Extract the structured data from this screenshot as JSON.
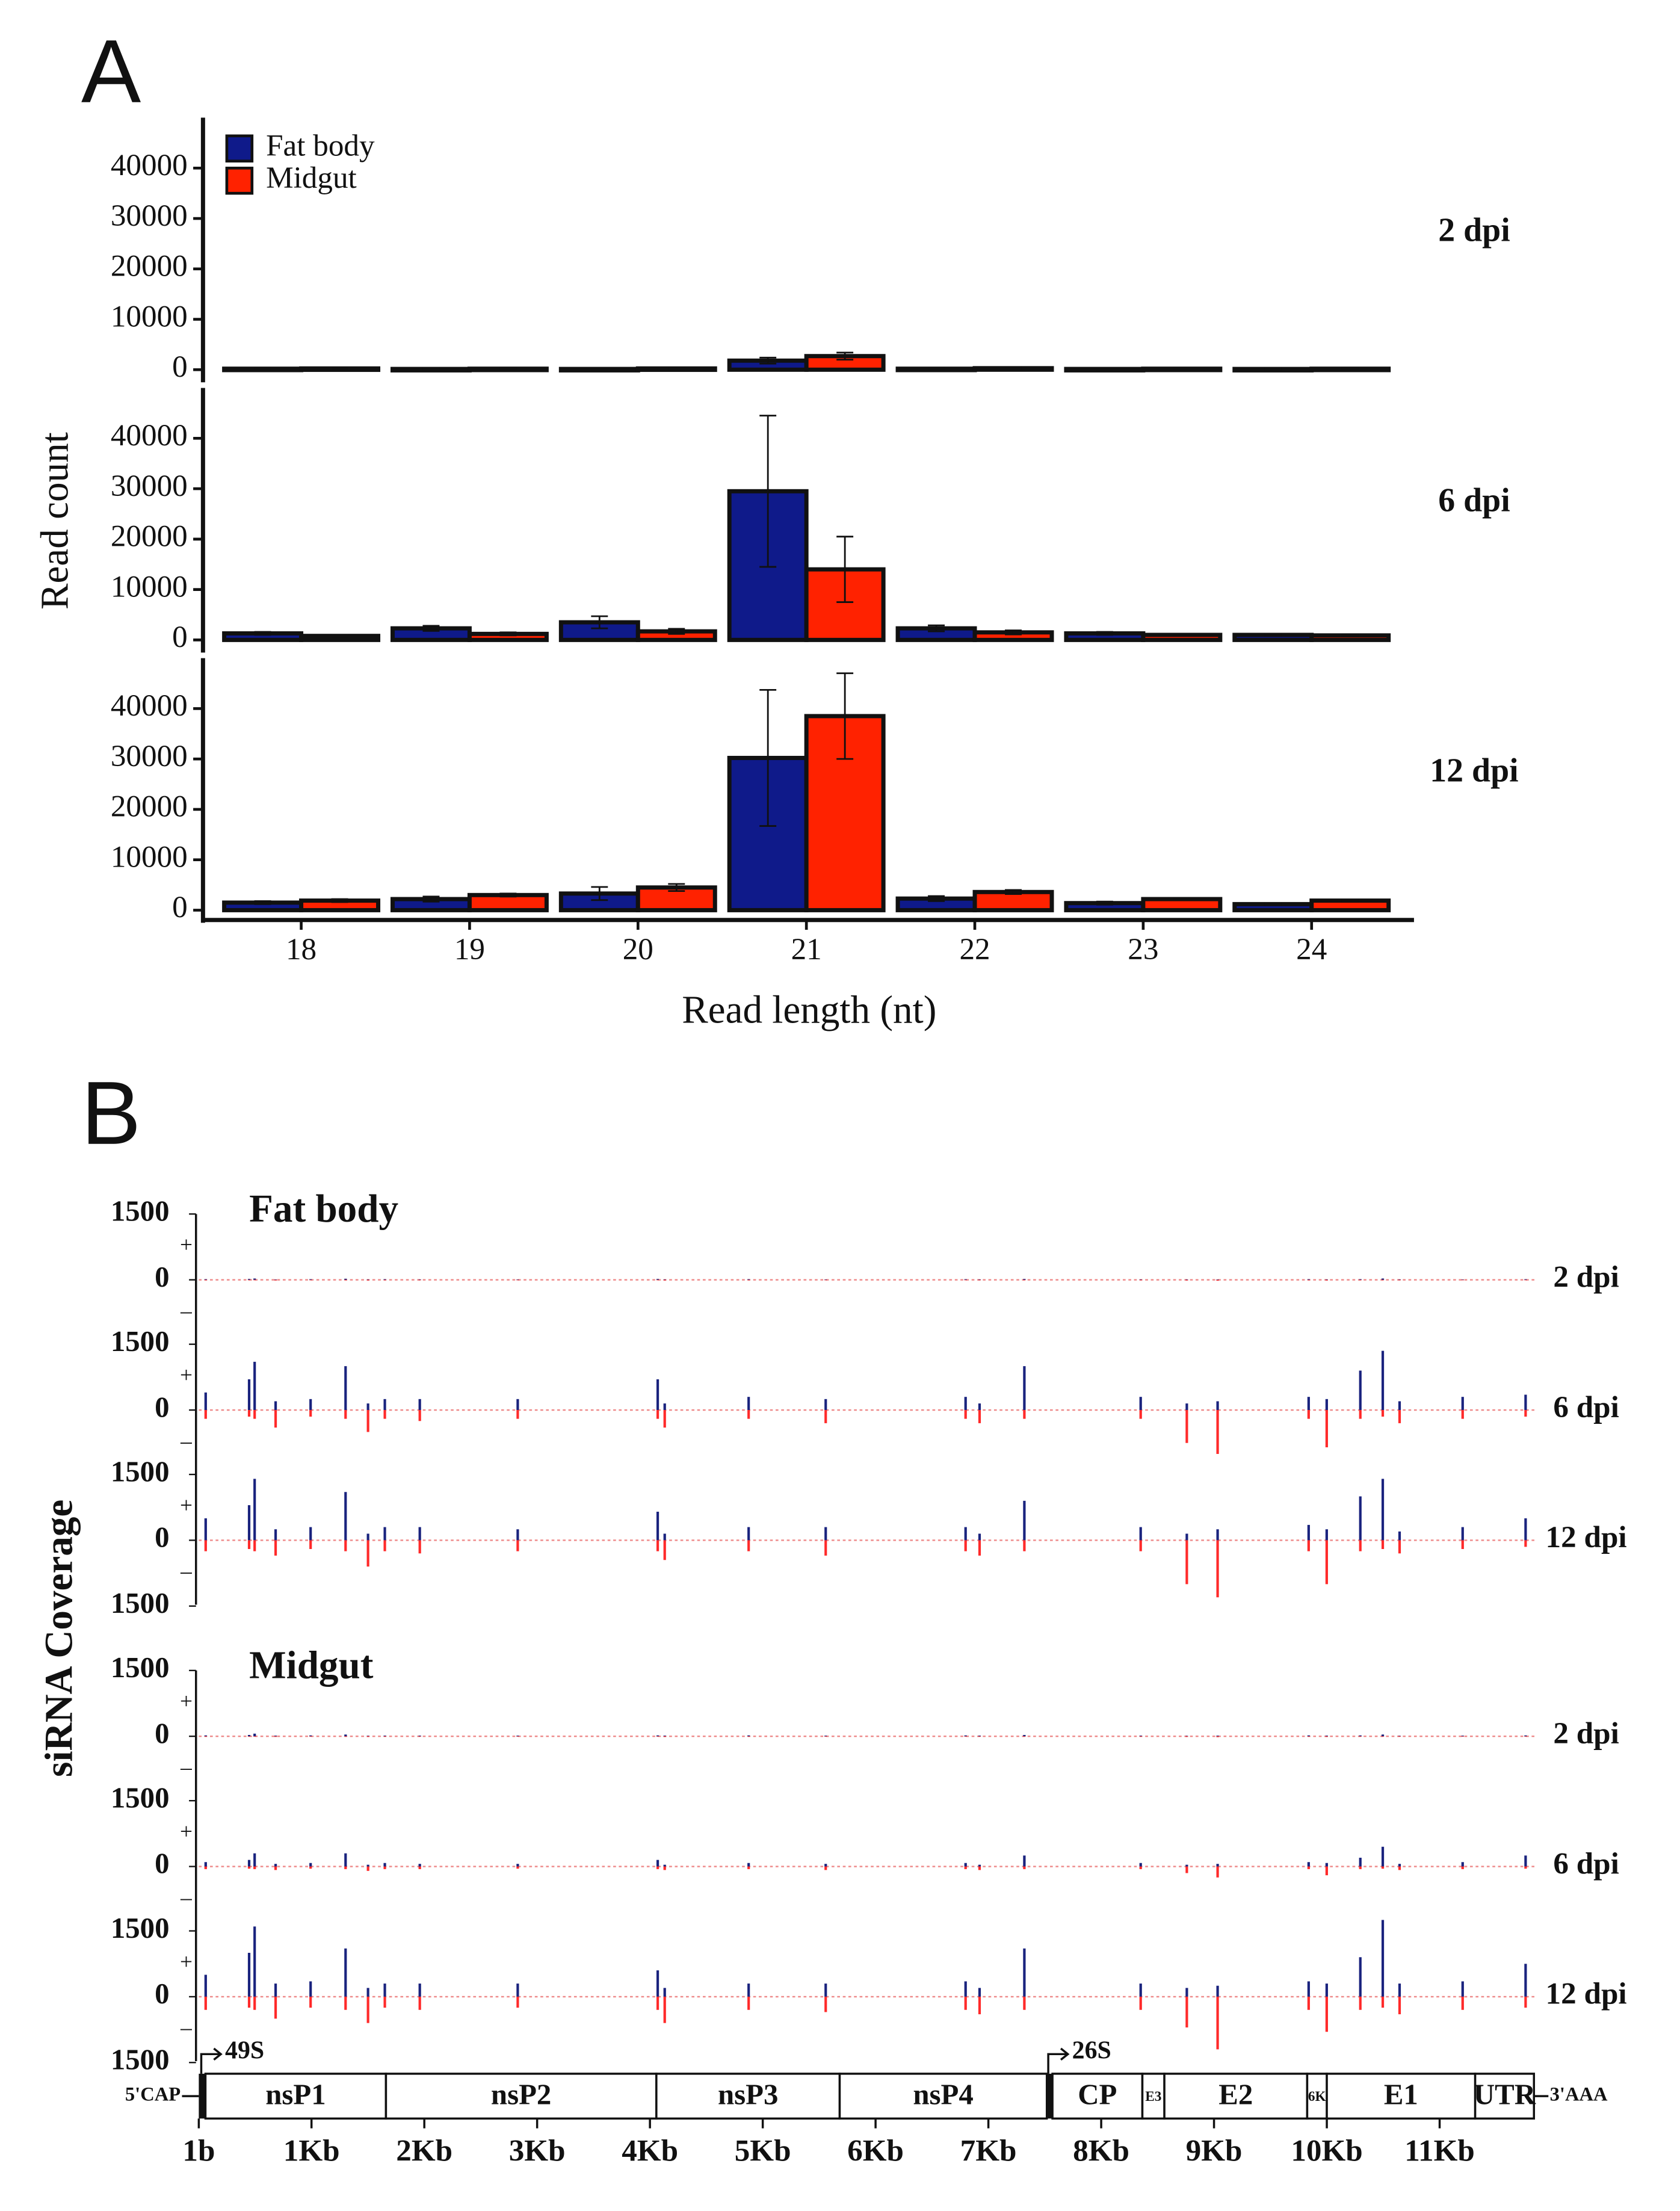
{
  "chart_data": [
    {
      "type": "bar",
      "panel_label": "A",
      "x_label": "Read length (nt)",
      "y_label": "Read count",
      "categories": [
        "18",
        "19",
        "20",
        "21",
        "22",
        "23",
        "24"
      ],
      "series": [
        {
          "name": "Fat body",
          "color": "#0f1a8a"
        },
        {
          "name": "Midgut",
          "color": "#ff2200"
        }
      ],
      "ylim": [
        -2500,
        50000
      ],
      "yticks": [
        0,
        10000,
        20000,
        30000,
        40000
      ],
      "legend": "upper left",
      "facets": [
        {
          "label": "2 dpi",
          "series": [
            {
              "values": [
                200,
                150,
                150,
                1800,
                200,
                150,
                150
              ],
              "errors": [
                100,
                80,
                80,
                600,
                100,
                80,
                80
              ]
            },
            {
              "values": [
                250,
                200,
                250,
                2700,
                300,
                200,
                200
              ],
              "errors": [
                150,
                100,
                100,
                700,
                150,
                100,
                100
              ]
            }
          ]
        },
        {
          "label": "6 dpi",
          "series": [
            {
              "values": [
                1300,
                2300,
                3500,
                29500,
                2300,
                1300,
                1000
              ],
              "errors": [
                300,
                500,
                1200,
                15000,
                600,
                300,
                200
              ]
            },
            {
              "values": [
                800,
                1200,
                1700,
                14000,
                1500,
                1000,
                900
              ],
              "errors": [
                200,
                300,
                500,
                6500,
                400,
                200,
                200
              ]
            }
          ]
        },
        {
          "label": "12 dpi",
          "series": [
            {
              "values": [
                1500,
                2200,
                3300,
                30200,
                2300,
                1400,
                1200
              ],
              "errors": [
                300,
                500,
                1300,
                13500,
                500,
                300,
                200
              ]
            },
            {
              "values": [
                1900,
                3000,
                4500,
                38500,
                3600,
                2200,
                1900
              ],
              "errors": [
                300,
                300,
                700,
                8500,
                400,
                200,
                200
              ]
            }
          ]
        }
      ]
    },
    {
      "type": "coverage",
      "panel_label": "B",
      "y_label": "siRNA Coverage",
      "xlim": [
        1,
        11840
      ],
      "ylim": [
        -1500,
        1500
      ],
      "yticks": [
        {
          "value": -1500,
          "label": "1500"
        },
        0,
        1500
      ],
      "strand_labels": [
        "+",
        "–"
      ],
      "plus_color": "#1a237e",
      "minus_color": "#ff2a2a",
      "x": [
        62,
        447,
        496,
        682,
        992,
        1302,
        1501,
        1650,
        1960,
        2828,
        4069,
        4131,
        4875,
        5558,
        6798,
        6922,
        7319,
        8350,
        8759,
        9032,
        9839,
        9999,
        10297,
        10496,
        10645,
        11204,
        11762
      ],
      "groups": [
        {
          "title": "Fat body",
          "tracks": [
            {
              "label": "2 dpi",
              "plus": [
                15,
                20,
                30,
                10,
                15,
                25,
                10,
                15,
                10,
                10,
                20,
                10,
                15,
                10,
                15,
                10,
                20,
                10,
                10,
                10,
                15,
                10,
                15,
                30,
                10,
                10,
                15
              ],
              "minus": [
                -10,
                -10,
                -10,
                -15,
                -10,
                -10,
                -15,
                -10,
                -10,
                -10,
                -10,
                -15,
                -10,
                -10,
                -10,
                -10,
                -10,
                -10,
                -15,
                -20,
                -10,
                -15,
                -10,
                -10,
                -10,
                -10,
                -10
              ]
            },
            {
              "label": "6 dpi",
              "plus": [
                400,
                700,
                1100,
                200,
                250,
                1000,
                150,
                250,
                250,
                250,
                700,
                150,
                300,
                250,
                300,
                150,
                1000,
                300,
                150,
                200,
                300,
                250,
                900,
                1350,
                200,
                300,
                350
              ],
              "minus": [
                -200,
                -150,
                -200,
                -400,
                -150,
                -200,
                -500,
                -200,
                -250,
                -200,
                -200,
                -400,
                -200,
                -300,
                -200,
                -300,
                -200,
                -200,
                -750,
                -1000,
                -200,
                -850,
                -200,
                -150,
                -300,
                -200,
                -150
              ]
            },
            {
              "label": "12 dpi",
              "plus": [
                500,
                800,
                1400,
                250,
                300,
                1100,
                150,
                300,
                300,
                250,
                650,
                150,
                300,
                300,
                300,
                150,
                900,
                300,
                150,
                250,
                350,
                250,
                1000,
                1400,
                200,
                300,
                500
              ],
              "minus": [
                -250,
                -200,
                -250,
                -350,
                -200,
                -250,
                -600,
                -250,
                -300,
                -250,
                -250,
                -450,
                -250,
                -350,
                -250,
                -350,
                -250,
                -250,
                -1000,
                -1300,
                -250,
                -1000,
                -250,
                -200,
                -300,
                -200,
                -150
              ]
            }
          ]
        },
        {
          "title": "Midgut",
          "tracks": [
            {
              "label": "2 dpi",
              "plus": [
                20,
                30,
                60,
                15,
                20,
                40,
                10,
                15,
                15,
                15,
                20,
                15,
                20,
                15,
                20,
                15,
                30,
                15,
                10,
                15,
                20,
                15,
                20,
                40,
                10,
                15,
                20
              ],
              "minus": [
                -10,
                -10,
                -10,
                -15,
                -10,
                -10,
                -15,
                -10,
                -10,
                -10,
                -10,
                -15,
                -10,
                -10,
                -10,
                -10,
                -10,
                -10,
                -15,
                -20,
                -10,
                -15,
                -10,
                -10,
                -10,
                -10,
                -10
              ]
            },
            {
              "label": "6 dpi",
              "plus": [
                100,
                150,
                300,
                60,
                80,
                300,
                40,
                80,
                60,
                60,
                150,
                40,
                80,
                60,
                80,
                40,
                250,
                80,
                40,
                60,
                100,
                80,
                200,
                450,
                60,
                100,
                250
              ],
              "minus": [
                -60,
                -50,
                -60,
                -80,
                -50,
                -60,
                -100,
                -60,
                -60,
                -50,
                -60,
                -80,
                -60,
                -80,
                -60,
                -80,
                -60,
                -60,
                -150,
                -250,
                -60,
                -200,
                -60,
                -50,
                -80,
                -60,
                -50
              ]
            },
            {
              "label": "12 dpi",
              "plus": [
                500,
                1000,
                1600,
                300,
                350,
                1100,
                200,
                300,
                300,
                300,
                600,
                200,
                300,
                300,
                350,
                200,
                1100,
                300,
                200,
                250,
                350,
                300,
                900,
                1750,
                300,
                350,
                750
              ],
              "minus": [
                -300,
                -250,
                -300,
                -500,
                -250,
                -300,
                -600,
                -250,
                -300,
                -250,
                -300,
                -600,
                -300,
                -350,
                -300,
                -400,
                -300,
                -300,
                -700,
                -1200,
                -300,
                -800,
                -300,
                -250,
                -400,
                -300,
                -250
              ]
            }
          ]
        }
      ],
      "genome": {
        "ends": [
          "5'CAP",
          "3'AAA"
        ],
        "promoters": [
          {
            "label": "49S",
            "position": 60
          },
          {
            "label": "26S",
            "position": 7568
          }
        ],
        "features": [
          {
            "label": "nsP1",
            "start": 60,
            "end": 1660
          },
          {
            "label": "nsP2",
            "start": 1660,
            "end": 4057
          },
          {
            "label": "nsP3",
            "start": 4057,
            "end": 5682
          },
          {
            "label": "nsP4",
            "start": 5682,
            "end": 7518
          },
          {
            "label": "CP",
            "start": 7568,
            "end": 8365
          },
          {
            "label": "E3",
            "start": 8365,
            "end": 8560
          },
          {
            "label": "E2",
            "start": 8560,
            "end": 9826
          },
          {
            "label": "6K",
            "start": 9826,
            "end": 10000
          },
          {
            "label": "E1",
            "start": 10000,
            "end": 11315
          },
          {
            "label": "UTR",
            "start": 11315,
            "end": 11836
          }
        ]
      },
      "xticks": [
        {
          "value": 1,
          "label": "1b"
        },
        {
          "value": 1000,
          "label": "1Kb"
        },
        {
          "value": 2000,
          "label": "2Kb"
        },
        {
          "value": 3000,
          "label": "3Kb"
        },
        {
          "value": 4000,
          "label": "4Kb"
        },
        {
          "value": 5000,
          "label": "5Kb"
        },
        {
          "value": 6000,
          "label": "6Kb"
        },
        {
          "value": 7000,
          "label": "7Kb"
        },
        {
          "value": 8000,
          "label": "8Kb"
        },
        {
          "value": 9000,
          "label": "9Kb"
        },
        {
          "value": 10000,
          "label": "10Kb"
        },
        {
          "value": 11000,
          "label": "11Kb"
        }
      ]
    }
  ]
}
